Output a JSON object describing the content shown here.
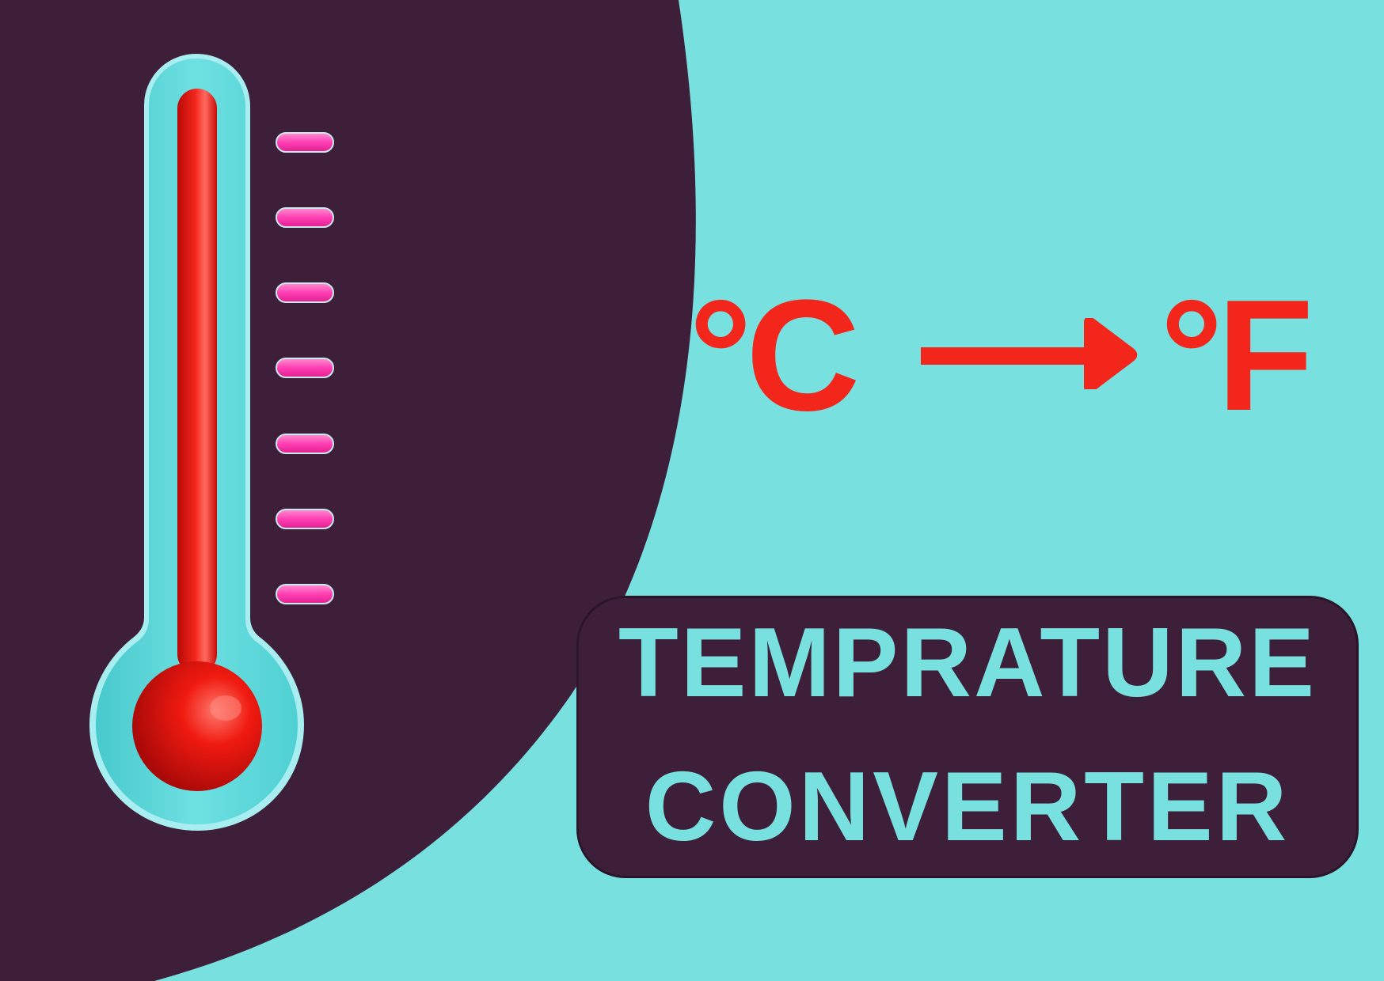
{
  "colors": {
    "background": "#79e0e0",
    "dark_panel": "#3d1f39",
    "accent_red": "#f2261b",
    "tick_pink": "#ff3fb3",
    "thermometer_tube": "#54d3d6",
    "title_text": "#79e0e0"
  },
  "conversion": {
    "from_unit": "°C",
    "to_unit": "°F",
    "arrow_icon": "right-arrow"
  },
  "title": {
    "line1": "TEMPRATURE",
    "line2": "CONVERTER"
  },
  "thermometer": {
    "icon": "thermometer",
    "tick_count": 7,
    "level": 0.95
  }
}
